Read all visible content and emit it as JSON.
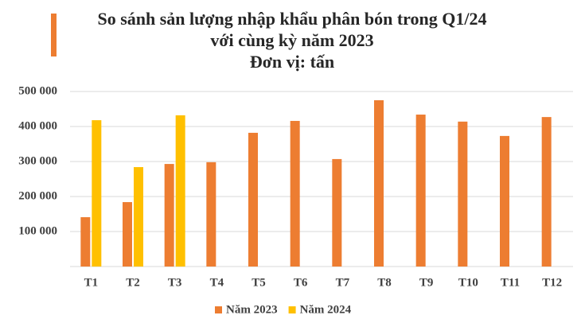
{
  "chart_data": {
    "type": "bar",
    "title": [
      "So sánh sản lượng nhập khẩu phân bón trong Q1/24",
      "với cùng kỳ năm 2023",
      "Đơn vị: tấn"
    ],
    "categories": [
      "T1",
      "T2",
      "T3",
      "T4",
      "T5",
      "T6",
      "T7",
      "T8",
      "T9",
      "T10",
      "T11",
      "T12"
    ],
    "series": [
      {
        "name": "Năm 2023",
        "color": "#ed7d31",
        "values": [
          141000,
          184000,
          293000,
          298000,
          382000,
          416000,
          307000,
          475000,
          434000,
          414000,
          373000,
          427000
        ]
      },
      {
        "name": "Năm 2024",
        "color": "#ffc000",
        "values": [
          418000,
          284000,
          432000,
          null,
          null,
          null,
          null,
          null,
          null,
          null,
          null,
          null
        ]
      }
    ],
    "ylim": [
      0,
      500000
    ],
    "yticks": [
      {
        "value": 100000,
        "label": "100 000"
      },
      {
        "value": 200000,
        "label": "200 000"
      },
      {
        "value": 300000,
        "label": "300 000"
      },
      {
        "value": 400000,
        "label": "400 000"
      },
      {
        "value": 500000,
        "label": "500 000"
      }
    ],
    "grid": true,
    "legend": "bottom"
  }
}
